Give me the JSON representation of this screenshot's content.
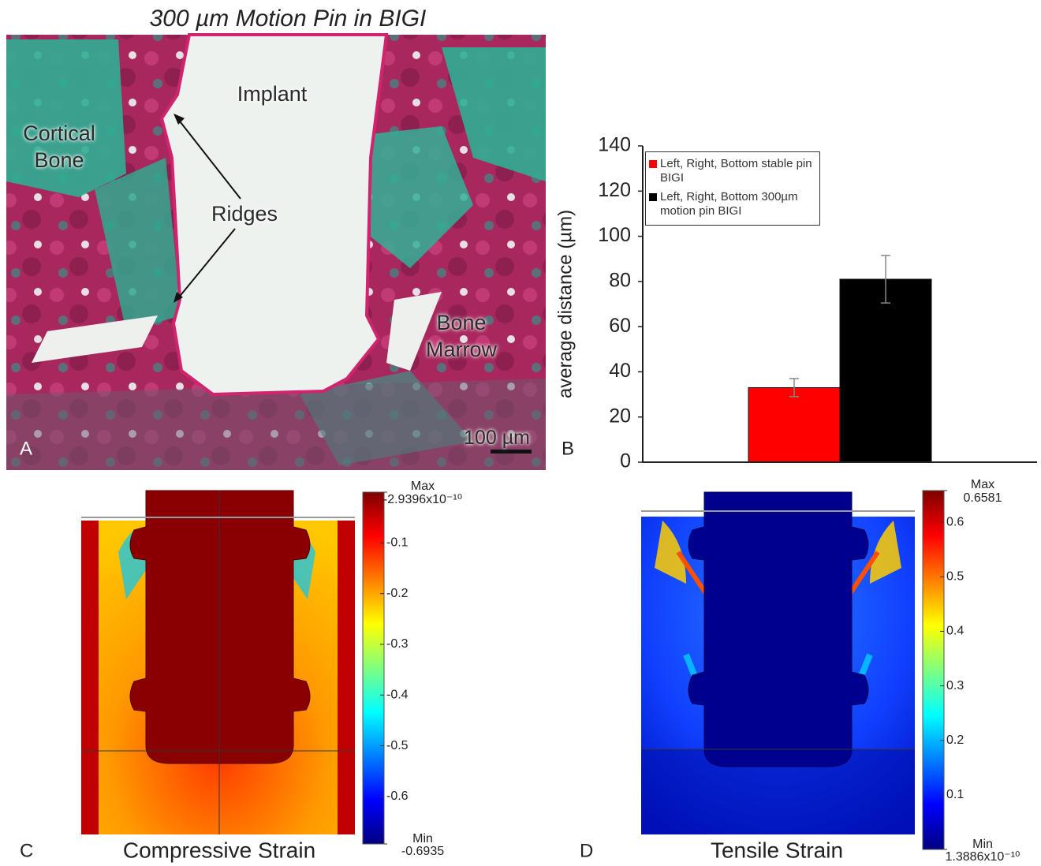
{
  "panel_a": {
    "title": "300 µm Motion Pin in BIGI",
    "implant": "Implant",
    "cortical_bone": "Cortical Bone",
    "ridges": "Ridges",
    "bone_marrow": "Bone Marrow",
    "scale_bar": "100 µm",
    "panel_label": "A"
  },
  "chart_data": [
    {
      "type": "bar",
      "panel_label": "B",
      "y_label": "average distance (µm)",
      "categories": [
        null
      ],
      "ylim": [
        0,
        140
      ],
      "yticks": [
        0,
        20,
        40,
        60,
        80,
        100,
        120,
        140
      ],
      "series": [
        {
          "name": "Left, Right, Bottom stable pin BIGI",
          "color": "#ff0000",
          "values": [
            33
          ],
          "errors": [
            4
          ]
        },
        {
          "name": "Left, Right, Bottom 300µm motion pin BIGI",
          "color": "#000000",
          "values": [
            81
          ],
          "errors": [
            10.5
          ]
        }
      ]
    },
    {
      "type": "colormap",
      "panel_label": "C",
      "title": "Compressive Strain",
      "clim": [
        -0.6935,
        -2.9396e-10
      ],
      "cticks": [
        -0.1,
        -0.2,
        -0.3,
        -0.4,
        -0.5,
        -0.6
      ],
      "cmax_title": "Max",
      "cmax": {
        "value": -2.9396e-10,
        "label": "-2.9396x10⁻¹⁰"
      },
      "cmin_title": "Min",
      "cmin": {
        "value": -0.6935,
        "label": "-0.6935"
      }
    },
    {
      "type": "colormap",
      "panel_label": "D",
      "title": "Tensile Strain",
      "clim": [
        1.3886e-10,
        0.6581
      ],
      "cticks": [
        0.1,
        0.2,
        0.3,
        0.4,
        0.5,
        0.6
      ],
      "cmax_title": "Max",
      "cmax": {
        "value": 0.6581,
        "label": "0.6581"
      },
      "cmin_title": "Min",
      "cmin": {
        "value": 1.3886e-10,
        "label": "1.3886x10⁻¹⁰"
      }
    }
  ]
}
